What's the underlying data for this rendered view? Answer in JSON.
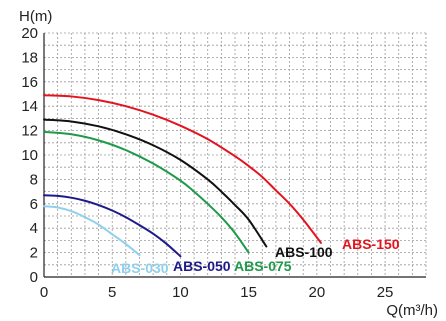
{
  "chart_data": {
    "type": "line",
    "title": "",
    "xlabel": "Q(m³/h)",
    "ylabel": "H(m)",
    "xlim": [
      0,
      28
    ],
    "ylim": [
      0,
      20
    ],
    "x_ticks": [
      0,
      5,
      10,
      15,
      20,
      25
    ],
    "y_ticks": [
      0,
      2,
      4,
      6,
      8,
      10,
      12,
      14,
      16,
      18,
      20
    ],
    "grid": true,
    "series": [
      {
        "name": "ABS-030",
        "color": "#8fd0ec",
        "x": [
          0,
          1,
          2,
          3,
          4,
          5,
          6,
          7
        ],
        "y": [
          5.8,
          5.7,
          5.4,
          4.9,
          4.3,
          3.5,
          2.7,
          1.8
        ]
      },
      {
        "name": "ABS-050",
        "color": "#1f1a8a",
        "x": [
          0,
          1,
          2,
          3,
          4,
          5,
          6,
          7,
          8,
          9,
          10
        ],
        "y": [
          6.7,
          6.65,
          6.5,
          6.25,
          5.9,
          5.45,
          4.9,
          4.25,
          3.55,
          2.7,
          1.7
        ]
      },
      {
        "name": "ABS-075",
        "color": "#1f9a4a",
        "x": [
          0,
          2,
          4,
          6,
          8,
          10,
          11,
          12,
          13,
          14,
          15
        ],
        "y": [
          11.9,
          11.7,
          11.2,
          10.4,
          9.3,
          7.9,
          7.0,
          6.0,
          4.9,
          3.6,
          2.0
        ]
      },
      {
        "name": "ABS-100",
        "color": "#111111",
        "x": [
          0,
          2,
          4,
          6,
          8,
          10,
          12,
          13,
          14,
          15,
          16.3
        ],
        "y": [
          12.9,
          12.75,
          12.35,
          11.7,
          10.8,
          9.6,
          8.0,
          7.0,
          5.9,
          4.7,
          2.5
        ]
      },
      {
        "name": "ABS-150",
        "color": "#e3141f",
        "x": [
          0,
          2,
          4,
          6,
          8,
          10,
          12,
          14,
          15,
          16,
          17,
          18,
          19,
          20.3
        ],
        "y": [
          14.9,
          14.8,
          14.5,
          14.0,
          13.3,
          12.4,
          11.3,
          9.9,
          9.1,
          8.2,
          7.1,
          6.0,
          4.7,
          2.8
        ]
      }
    ]
  }
}
